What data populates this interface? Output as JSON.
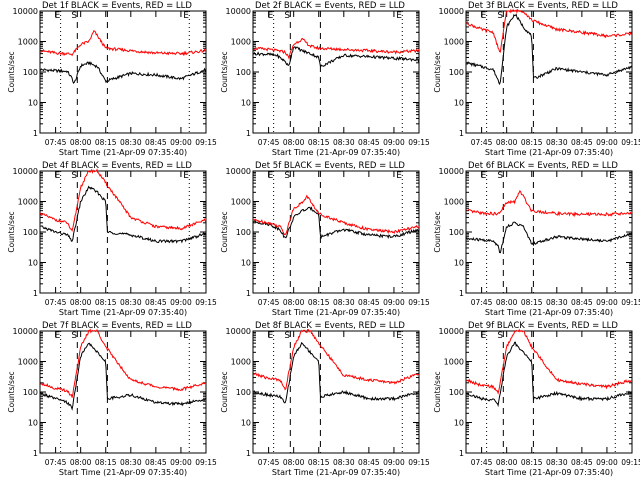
{
  "chart_data": [
    {
      "type": "line",
      "title": "Det 1f BLACK = Events, RED = LLD",
      "ylabel": "Counts/sec",
      "xlabel": "Start Time (21-Apr-09 07:35:40)",
      "x_ticks": [
        "07:45",
        "08:00",
        "08:15",
        "08:30",
        "08:45",
        "09:00",
        "09:15"
      ],
      "y_ticks": [
        "1",
        "10",
        "100",
        "1000",
        "10000"
      ],
      "yscale": "log",
      "ylim": [
        1,
        10000
      ],
      "xlim": [
        "07:35:40",
        "09:15"
      ],
      "markers": [
        "E",
        "S",
        "E"
      ],
      "series_colors": [
        "#000000",
        "#ff0000"
      ],
      "series": [
        {
          "x": [
            "07:36",
            "07:45",
            "07:52",
            "07:55",
            "07:56",
            "08:00",
            "08:05",
            "08:10",
            "08:15",
            "08:30",
            "08:45",
            "09:00",
            "09:15"
          ],
          "y": [
            120,
            110,
            105,
            60,
            40,
            160,
            200,
            150,
            50,
            90,
            80,
            60,
            120
          ]
        },
        {
          "x": [
            "07:36",
            "07:45",
            "07:52",
            "07:55",
            "08:00",
            "08:05",
            "08:08",
            "08:15",
            "08:30",
            "08:45",
            "09:00",
            "09:15"
          ],
          "y": [
            500,
            420,
            400,
            380,
            800,
            1000,
            2200,
            600,
            500,
            420,
            400,
            500
          ]
        }
      ]
    },
    {
      "type": "line",
      "title": "Det 2f BLACK = Events, RED = LLD",
      "ylabel": "Counts/sec",
      "xlabel": "Start Time (21-Apr-09 07:35:40)",
      "x_ticks": [
        "07:45",
        "08:00",
        "08:15",
        "08:30",
        "08:45",
        "09:00",
        "09:15"
      ],
      "y_ticks": [
        "1",
        "10",
        "100",
        "1000",
        "10000"
      ],
      "yscale": "log",
      "ylim": [
        1,
        10000
      ],
      "xlim": [
        "07:35:40",
        "09:15"
      ],
      "markers": [
        "E",
        "S",
        "E"
      ],
      "series_colors": [
        "#000000",
        "#ff0000"
      ],
      "series": [
        {
          "x": [
            "07:36",
            "07:45",
            "07:50",
            "07:55",
            "07:57",
            "08:00",
            "08:05",
            "08:10",
            "08:15",
            "08:16",
            "08:30",
            "08:45",
            "09:00",
            "09:15"
          ],
          "y": [
            400,
            380,
            350,
            220,
            150,
            700,
            500,
            400,
            300,
            150,
            350,
            320,
            280,
            250
          ]
        },
        {
          "x": [
            "07:36",
            "07:45",
            "07:50",
            "07:55",
            "07:57",
            "08:00",
            "08:05",
            "08:10",
            "08:15",
            "08:30",
            "08:45",
            "09:00",
            "09:15"
          ],
          "y": [
            600,
            550,
            500,
            450,
            300,
            800,
            1200,
            700,
            600,
            550,
            500,
            450,
            500
          ]
        }
      ]
    },
    {
      "type": "line",
      "title": "Det 3f BLACK = Events, RED = LLD",
      "ylabel": "Counts/sec",
      "xlabel": "Start Time (21-Apr-09 07:35:40)",
      "x_ticks": [
        "07:45",
        "08:00",
        "08:15",
        "08:30",
        "08:45",
        "09:00",
        "09:15"
      ],
      "y_ticks": [
        "1",
        "10",
        "100",
        "1000",
        "10000"
      ],
      "yscale": "log",
      "ylim": [
        1,
        10000
      ],
      "xlim": [
        "07:35:40",
        "09:15"
      ],
      "markers": [
        "E",
        "S",
        "E"
      ],
      "series_colors": [
        "#000000",
        "#ff0000"
      ],
      "series": [
        {
          "x": [
            "07:36",
            "07:45",
            "07:52",
            "07:56",
            "08:00",
            "08:05",
            "08:10",
            "08:15",
            "08:16",
            "08:30",
            "08:45",
            "09:00",
            "09:15"
          ],
          "y": [
            200,
            150,
            120,
            40,
            3000,
            8000,
            3000,
            1500,
            60,
            130,
            100,
            80,
            150
          ]
        },
        {
          "x": [
            "07:36",
            "07:45",
            "07:52",
            "07:56",
            "08:00",
            "08:05",
            "08:10",
            "08:15",
            "08:30",
            "08:45",
            "09:00",
            "09:15"
          ],
          "y": [
            4000,
            2500,
            2000,
            400,
            10000,
            10000,
            10000,
            5000,
            2500,
            2000,
            1500,
            1800
          ]
        }
      ]
    },
    {
      "type": "line",
      "title": "Det 4f BLACK = Events, RED = LLD",
      "ylabel": "Counts/sec",
      "xlabel": "Start Time (21-Apr-09 07:35:40)",
      "x_ticks": [
        "07:45",
        "08:00",
        "08:15",
        "08:30",
        "08:45",
        "09:00",
        "09:15"
      ],
      "y_ticks": [
        "1",
        "10",
        "100",
        "1000",
        "10000"
      ],
      "yscale": "log",
      "ylim": [
        1,
        10000
      ],
      "xlim": [
        "07:35:40",
        "09:15"
      ],
      "markers": [
        "E",
        "S",
        "E"
      ],
      "series_colors": [
        "#000000",
        "#ff0000"
      ],
      "series": [
        {
          "x": [
            "07:36",
            "07:45",
            "07:52",
            "07:55",
            "08:00",
            "08:05",
            "08:10",
            "08:15",
            "08:16",
            "08:30",
            "08:45",
            "09:00",
            "09:15"
          ],
          "y": [
            150,
            100,
            80,
            50,
            1000,
            3000,
            2000,
            1000,
            100,
            80,
            50,
            50,
            90
          ]
        },
        {
          "x": [
            "07:36",
            "07:45",
            "07:52",
            "07:55",
            "08:00",
            "08:05",
            "08:10",
            "08:15",
            "08:30",
            "08:45",
            "09:00",
            "09:15"
          ],
          "y": [
            400,
            250,
            200,
            100,
            3000,
            10000,
            10000,
            4000,
            300,
            150,
            130,
            250
          ]
        }
      ]
    },
    {
      "type": "line",
      "title": "Det 5f BLACK = Events, RED = LLD",
      "ylabel": "Counts/sec",
      "xlabel": "Start Time (21-Apr-09 07:35:40)",
      "x_ticks": [
        "07:45",
        "08:00",
        "08:15",
        "08:30",
        "08:45",
        "09:00",
        "09:15"
      ],
      "y_ticks": [
        "1",
        "10",
        "100",
        "1000",
        "10000"
      ],
      "yscale": "log",
      "ylim": [
        1,
        10000
      ],
      "xlim": [
        "07:35:40",
        "09:15"
      ],
      "markers": [
        "E",
        "S",
        "E"
      ],
      "series_colors": [
        "#000000",
        "#ff0000"
      ],
      "series": [
        {
          "x": [
            "07:36",
            "07:45",
            "07:52",
            "07:55",
            "08:00",
            "08:05",
            "08:10",
            "08:15",
            "08:16",
            "08:30",
            "08:45",
            "09:00",
            "09:15"
          ],
          "y": [
            220,
            180,
            120,
            60,
            300,
            500,
            600,
            400,
            70,
            120,
            80,
            70,
            120
          ]
        },
        {
          "x": [
            "07:36",
            "07:45",
            "07:52",
            "07:55",
            "08:00",
            "08:05",
            "08:08",
            "08:15",
            "08:30",
            "08:45",
            "09:00",
            "09:15"
          ],
          "y": [
            250,
            200,
            150,
            80,
            600,
            900,
            1500,
            400,
            200,
            120,
            100,
            150
          ]
        }
      ]
    },
    {
      "type": "line",
      "title": "Det 6f BLACK = Events, RED = LLD",
      "ylabel": "Counts/sec",
      "xlabel": "Start Time (21-Apr-09 07:35:40)",
      "x_ticks": [
        "07:45",
        "08:00",
        "08:15",
        "08:30",
        "08:45",
        "09:00",
        "09:15"
      ],
      "y_ticks": [
        "1",
        "10",
        "100",
        "1000",
        "10000"
      ],
      "yscale": "log",
      "ylim": [
        1,
        10000
      ],
      "xlim": [
        "07:35:40",
        "09:15"
      ],
      "markers": [
        "E",
        "S",
        "E"
      ],
      "series_colors": [
        "#000000",
        "#ff0000"
      ],
      "series": [
        {
          "x": [
            "07:36",
            "07:45",
            "07:52",
            "07:55",
            "07:56",
            "08:00",
            "08:05",
            "08:10",
            "08:15",
            "08:30",
            "08:45",
            "09:00",
            "09:15"
          ],
          "y": [
            60,
            55,
            50,
            35,
            20,
            150,
            200,
            150,
            40,
            70,
            60,
            50,
            90
          ]
        },
        {
          "x": [
            "07:36",
            "07:45",
            "07:52",
            "07:55",
            "08:00",
            "08:05",
            "08:08",
            "08:15",
            "08:30",
            "08:45",
            "09:00",
            "09:15"
          ],
          "y": [
            500,
            420,
            400,
            380,
            900,
            1000,
            2200,
            500,
            400,
            380,
            380,
            420
          ]
        }
      ]
    },
    {
      "type": "line",
      "title": "Det 7f BLACK = Events, RED = LLD",
      "ylabel": "Counts/sec",
      "xlabel": "Start Time (21-Apr-09 07:35:40)",
      "x_ticks": [
        "07:45",
        "08:00",
        "08:15",
        "08:30",
        "08:45",
        "09:00",
        "09:15"
      ],
      "y_ticks": [
        "1",
        "10",
        "100",
        "1000",
        "10000"
      ],
      "yscale": "log",
      "ylim": [
        1,
        10000
      ],
      "xlim": [
        "07:35:40",
        "09:15"
      ],
      "markers": [
        "E",
        "S",
        "E"
      ],
      "series_colors": [
        "#000000",
        "#ff0000"
      ],
      "series": [
        {
          "x": [
            "07:36",
            "07:45",
            "07:52",
            "07:55",
            "08:00",
            "08:05",
            "08:10",
            "08:15",
            "08:16",
            "08:30",
            "08:45",
            "09:00",
            "09:15"
          ],
          "y": [
            90,
            60,
            45,
            30,
            1500,
            4000,
            2000,
            1000,
            60,
            80,
            45,
            40,
            60
          ]
        },
        {
          "x": [
            "07:36",
            "07:45",
            "07:52",
            "07:55",
            "08:00",
            "08:05",
            "08:10",
            "08:15",
            "08:30",
            "08:45",
            "09:00",
            "09:15"
          ],
          "y": [
            200,
            130,
            110,
            70,
            3000,
            10000,
            10000,
            3000,
            250,
            150,
            120,
            200
          ]
        }
      ]
    },
    {
      "type": "line",
      "title": "Det 8f BLACK = Events, RED = LLD",
      "ylabel": "Counts/sec",
      "xlabel": "Start Time (21-Apr-09 07:35:40)",
      "x_ticks": [
        "07:45",
        "08:00",
        "08:15",
        "08:30",
        "08:45",
        "09:00",
        "09:15"
      ],
      "y_ticks": [
        "1",
        "10",
        "100",
        "1000",
        "10000"
      ],
      "yscale": "log",
      "ylim": [
        1,
        10000
      ],
      "xlim": [
        "07:35:40",
        "09:15"
      ],
      "markers": [
        "E",
        "S",
        "E"
      ],
      "series_colors": [
        "#000000",
        "#ff0000"
      ],
      "series": [
        {
          "x": [
            "07:36",
            "07:45",
            "07:52",
            "07:55",
            "08:00",
            "08:05",
            "08:10",
            "08:15",
            "08:16",
            "08:30",
            "08:45",
            "09:00",
            "09:15"
          ],
          "y": [
            100,
            80,
            70,
            40,
            1500,
            4000,
            2000,
            1000,
            70,
            100,
            60,
            60,
            100
          ]
        },
        {
          "x": [
            "07:36",
            "07:45",
            "07:52",
            "07:55",
            "08:00",
            "08:05",
            "08:10",
            "08:15",
            "08:30",
            "08:45",
            "09:00",
            "09:15"
          ],
          "y": [
            400,
            280,
            250,
            110,
            3000,
            10000,
            10000,
            4000,
            350,
            250,
            200,
            400
          ]
        }
      ]
    },
    {
      "type": "line",
      "title": "Det 9f BLACK = Events, RED = LLD",
      "ylabel": "Counts/sec",
      "xlabel": "Start Time (21-Apr-09 07:35:40)",
      "x_ticks": [
        "07:45",
        "08:00",
        "08:15",
        "08:30",
        "08:45",
        "09:00",
        "09:15"
      ],
      "y_ticks": [
        "1",
        "10",
        "100",
        "1000",
        "10000"
      ],
      "yscale": "log",
      "ylim": [
        1,
        10000
      ],
      "xlim": [
        "07:35:40",
        "09:15"
      ],
      "markers": [
        "E",
        "S",
        "E"
      ],
      "series_colors": [
        "#000000",
        "#ff0000"
      ],
      "series": [
        {
          "x": [
            "07:36",
            "07:45",
            "07:52",
            "07:55",
            "08:00",
            "08:05",
            "08:10",
            "08:15",
            "08:16",
            "08:30",
            "08:45",
            "09:00",
            "09:15"
          ],
          "y": [
            90,
            60,
            55,
            40,
            1500,
            4000,
            2000,
            1000,
            60,
            90,
            60,
            60,
            100
          ]
        },
        {
          "x": [
            "07:36",
            "07:45",
            "07:52",
            "07:55",
            "08:00",
            "08:05",
            "08:10",
            "08:15",
            "08:30",
            "08:45",
            "09:00",
            "09:15"
          ],
          "y": [
            250,
            160,
            150,
            90,
            3000,
            10000,
            10000,
            3000,
            250,
            180,
            150,
            250
          ]
        }
      ]
    }
  ]
}
